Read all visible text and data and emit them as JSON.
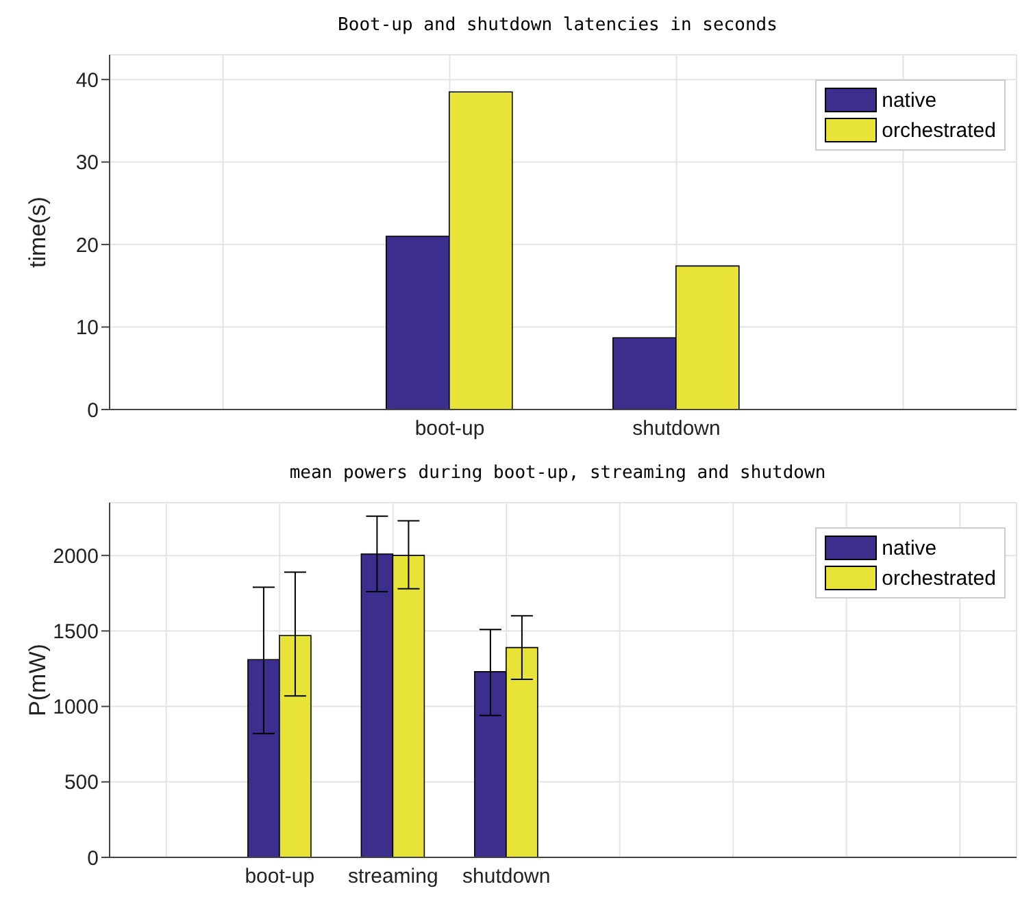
{
  "chart_data": [
    {
      "type": "bar",
      "title": "Boot-up and shutdown latencies in seconds",
      "ylabel": "time(s)",
      "categories": [
        null,
        "boot-up",
        "shutdown",
        null
      ],
      "series": [
        {
          "name": "native",
          "color": "#3b2e8c",
          "values": [
            null,
            21,
            8.7,
            null
          ]
        },
        {
          "name": "orchestrated",
          "color": "#e8e337",
          "values": [
            null,
            38.5,
            17.4,
            null
          ]
        }
      ],
      "ylim": [
        0,
        43
      ],
      "yticks": [
        0,
        10,
        20,
        30,
        40
      ],
      "grid": true,
      "legend": "top right"
    },
    {
      "type": "bar",
      "title": "mean powers during boot-up, streaming and shutdown",
      "ylabel": "P(mW)",
      "categories": [
        null,
        "boot-up",
        "streaming",
        "shutdown",
        null,
        null,
        null,
        null
      ],
      "series": [
        {
          "name": "native",
          "color": "#3b2e8c",
          "values": [
            null,
            1310,
            2010,
            1230,
            null,
            null,
            null,
            null
          ],
          "errors": [
            null,
            [
              820,
              1790
            ],
            [
              1760,
              2260
            ],
            [
              940,
              1510
            ],
            null,
            null,
            null,
            null
          ]
        },
        {
          "name": "orchestrated",
          "color": "#e8e337",
          "values": [
            null,
            1470,
            2000,
            1390,
            null,
            null,
            null,
            null
          ],
          "errors": [
            null,
            [
              1070,
              1890
            ],
            [
              1780,
              2230
            ],
            [
              1180,
              1600
            ],
            null,
            null,
            null,
            null
          ]
        }
      ],
      "ylim": [
        0,
        2350
      ],
      "yticks": [
        0,
        500,
        1000,
        1500,
        2000
      ],
      "grid": true,
      "legend": "top right"
    }
  ]
}
